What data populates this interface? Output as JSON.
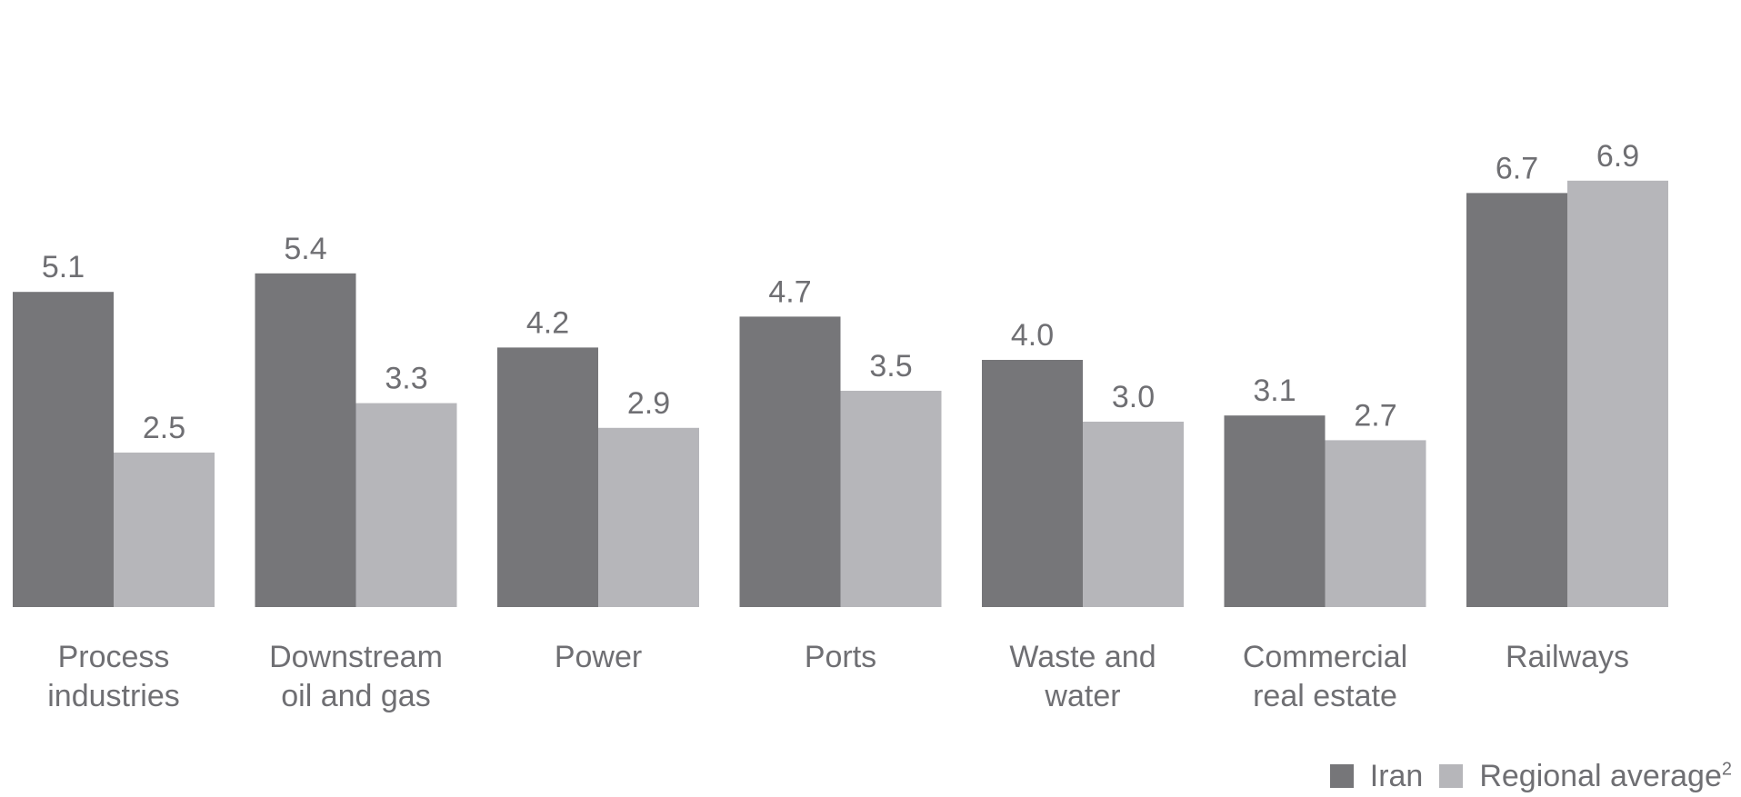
{
  "chart_data": {
    "type": "bar",
    "categories": [
      [
        "Process",
        "industries"
      ],
      [
        "Downstream",
        "oil and gas"
      ],
      [
        "Power"
      ],
      [
        "Ports"
      ],
      [
        "Waste and",
        "water"
      ],
      [
        "Commercial",
        "real estate"
      ],
      [
        "Railways"
      ]
    ],
    "series": [
      {
        "name": "Iran",
        "color": "#767679",
        "values": [
          5.1,
          5.4,
          4.2,
          4.7,
          4.0,
          3.1,
          6.7
        ],
        "labels": [
          "5.1",
          "5.4",
          "4.2",
          "4.7",
          "4.0",
          "3.1",
          "6.7"
        ]
      },
      {
        "name": "Regional average",
        "name_superscript": "2",
        "color": "#b6b6ba",
        "values": [
          2.5,
          3.3,
          2.9,
          3.5,
          3.0,
          2.7,
          6.9
        ],
        "labels": [
          "2.5",
          "3.3",
          "2.9",
          "3.5",
          "3.0",
          "2.7",
          "6.9"
        ]
      }
    ],
    "ylim": [
      0,
      7.2
    ],
    "grid": false,
    "legend_position": "bottom-right"
  }
}
